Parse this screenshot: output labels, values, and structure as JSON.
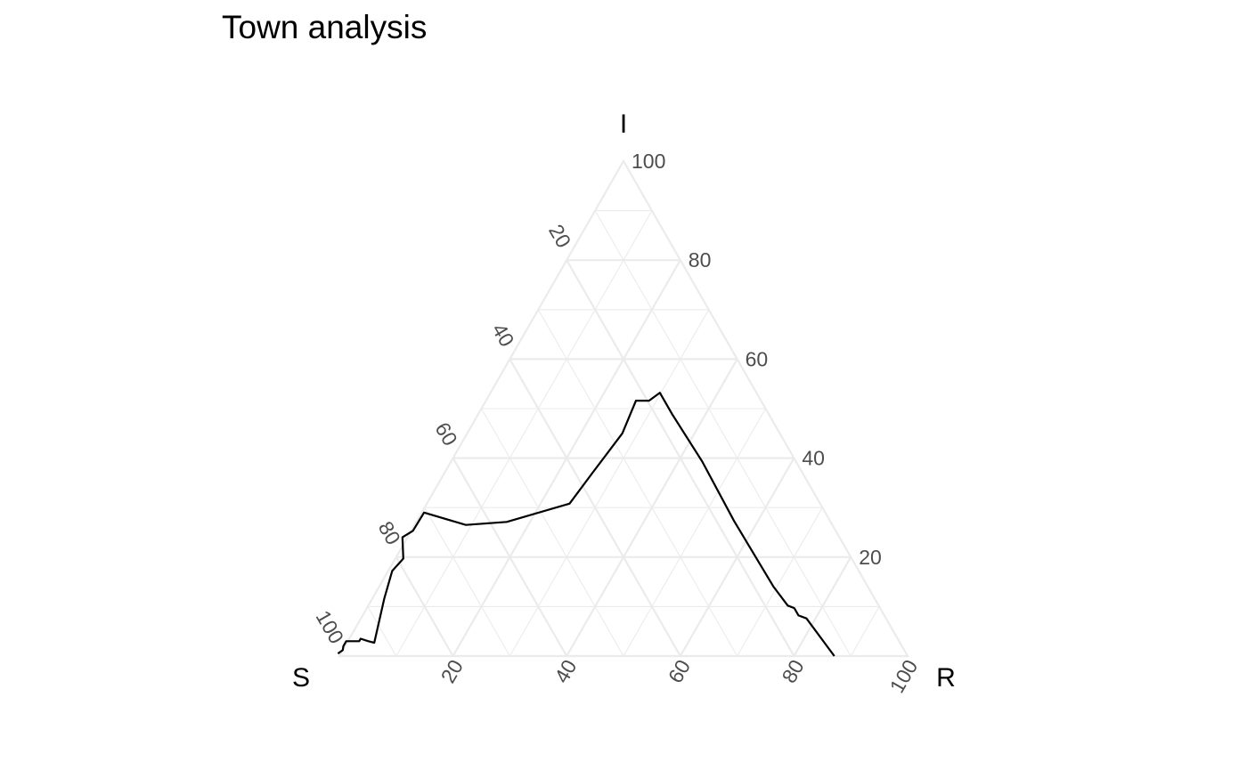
{
  "chart_data": {
    "type": "ternary",
    "title": "Town analysis",
    "axes": {
      "S": {
        "label": "S",
        "ticks": [
          20,
          40,
          60,
          80,
          100
        ]
      },
      "I": {
        "label": "I",
        "ticks": [
          20,
          40,
          60,
          80,
          100
        ]
      },
      "R": {
        "label": "R",
        "ticks": [
          20,
          40,
          60,
          80,
          100
        ]
      }
    },
    "grid": true,
    "series": [
      {
        "points": [
          {
            "S": 100.0,
            "I": 0.5,
            "R": -0.5
          },
          {
            "S": 98.8,
            "I": 1.2,
            "R": 0.0
          },
          {
            "S": 98.3,
            "I": 2.0,
            "R": -0.3
          },
          {
            "S": 97.3,
            "I": 3.0,
            "R": -0.3
          },
          {
            "S": 95.0,
            "I": 3.0,
            "R": 2.0
          },
          {
            "S": 94.5,
            "I": 3.5,
            "R": 2.0
          },
          {
            "S": 93.4,
            "I": 3.0,
            "R": 3.6
          },
          {
            "S": 92.5,
            "I": 2.7,
            "R": 4.8
          },
          {
            "S": 86.3,
            "I": 11.6,
            "R": 2.1
          },
          {
            "S": 82.1,
            "I": 17.2,
            "R": 0.7
          },
          {
            "S": 78.9,
            "I": 19.7,
            "R": 1.4
          },
          {
            "S": 76.9,
            "I": 24.0,
            "R": -0.9
          },
          {
            "S": 74.4,
            "I": 25.3,
            "R": 0.3
          },
          {
            "S": 70.6,
            "I": 29.0,
            "R": 0.4
          },
          {
            "S": 64.5,
            "I": 26.5,
            "R": 9.0
          },
          {
            "S": 57.0,
            "I": 27.1,
            "R": 15.9
          },
          {
            "S": 44.1,
            "I": 30.8,
            "R": 25.1
          },
          {
            "S": 37.2,
            "I": 36.8,
            "R": 26.0
          },
          {
            "S": 27.7,
            "I": 45.0,
            "R": 27.3
          },
          {
            "S": 22.0,
            "I": 51.6,
            "R": 26.4
          },
          {
            "S": 19.7,
            "I": 51.6,
            "R": 28.7
          },
          {
            "S": 17.0,
            "I": 53.2,
            "R": 29.8
          },
          {
            "S": 17.0,
            "I": 48.9,
            "R": 34.1
          },
          {
            "S": 16.5,
            "I": 39.3,
            "R": 44.2
          },
          {
            "S": 16.9,
            "I": 27.3,
            "R": 55.8
          },
          {
            "S": 16.6,
            "I": 14.1,
            "R": 69.3
          },
          {
            "S": 16.0,
            "I": 10.2,
            "R": 73.8
          },
          {
            "S": 15.1,
            "I": 9.7,
            "R": 75.2
          },
          {
            "S": 15.1,
            "I": 8.2,
            "R": 76.7
          },
          {
            "S": 14.0,
            "I": 7.6,
            "R": 78.4
          },
          {
            "S": 12.9,
            "I": 0.0,
            "R": 87.1
          }
        ]
      }
    ]
  }
}
